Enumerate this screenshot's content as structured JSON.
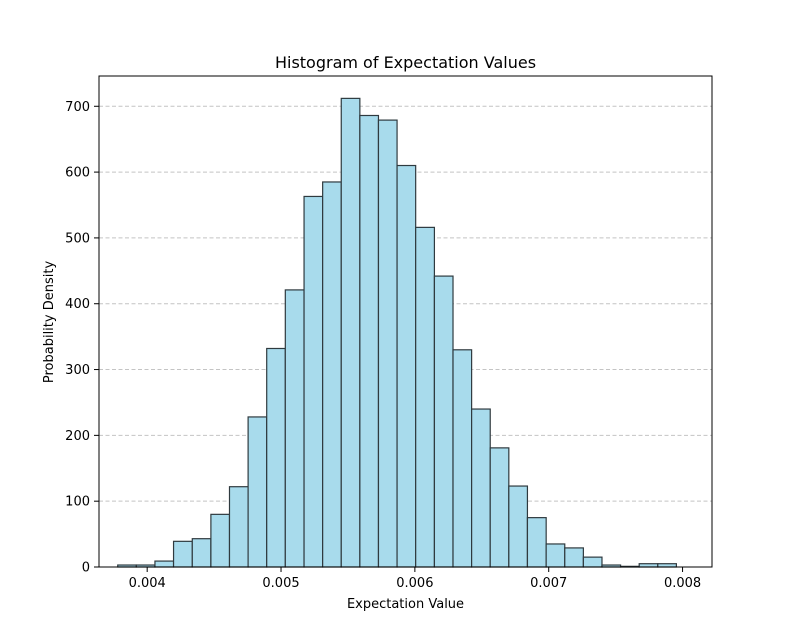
{
  "chart_data": {
    "type": "bar",
    "title": "Histogram of Expectation Values",
    "xlabel": "Expectation Value",
    "ylabel": "Probability Density",
    "xlim": [
      0.00364,
      0.00822
    ],
    "ylim": [
      0,
      746
    ],
    "x_ticks": [
      0.004,
      0.005,
      0.006,
      0.007,
      0.008
    ],
    "x_tick_labels": [
      "0.004",
      "0.005",
      "0.006",
      "0.007",
      "0.008"
    ],
    "y_ticks": [
      0,
      100,
      200,
      300,
      400,
      500,
      600,
      700
    ],
    "y_tick_labels": [
      "0",
      "100",
      "200",
      "300",
      "400",
      "500",
      "600",
      "700"
    ],
    "grid": "y-dashed",
    "bin_edges": [
      0.00378,
      0.003919,
      0.004058,
      0.004197,
      0.004337,
      0.004476,
      0.004615,
      0.004754,
      0.004893,
      0.005032,
      0.005172,
      0.005311,
      0.00545,
      0.005589,
      0.005728,
      0.005867,
      0.006006,
      0.006146,
      0.006285,
      0.006424,
      0.006563,
      0.006702,
      0.006841,
      0.006981,
      0.00712,
      0.007259,
      0.007398,
      0.007537,
      0.007676,
      0.007815,
      0.007954
    ],
    "values": [
      3,
      3,
      9,
      39,
      43,
      80,
      122,
      228,
      332,
      421,
      563,
      585,
      712,
      686,
      679,
      610,
      516,
      442,
      330,
      240,
      181,
      123,
      75,
      35,
      29,
      15,
      3,
      1,
      5,
      5
    ],
    "bar_color": "#a8dbec",
    "edge_color": "#2f3a3f",
    "grid_color": "#c4c4c4"
  }
}
